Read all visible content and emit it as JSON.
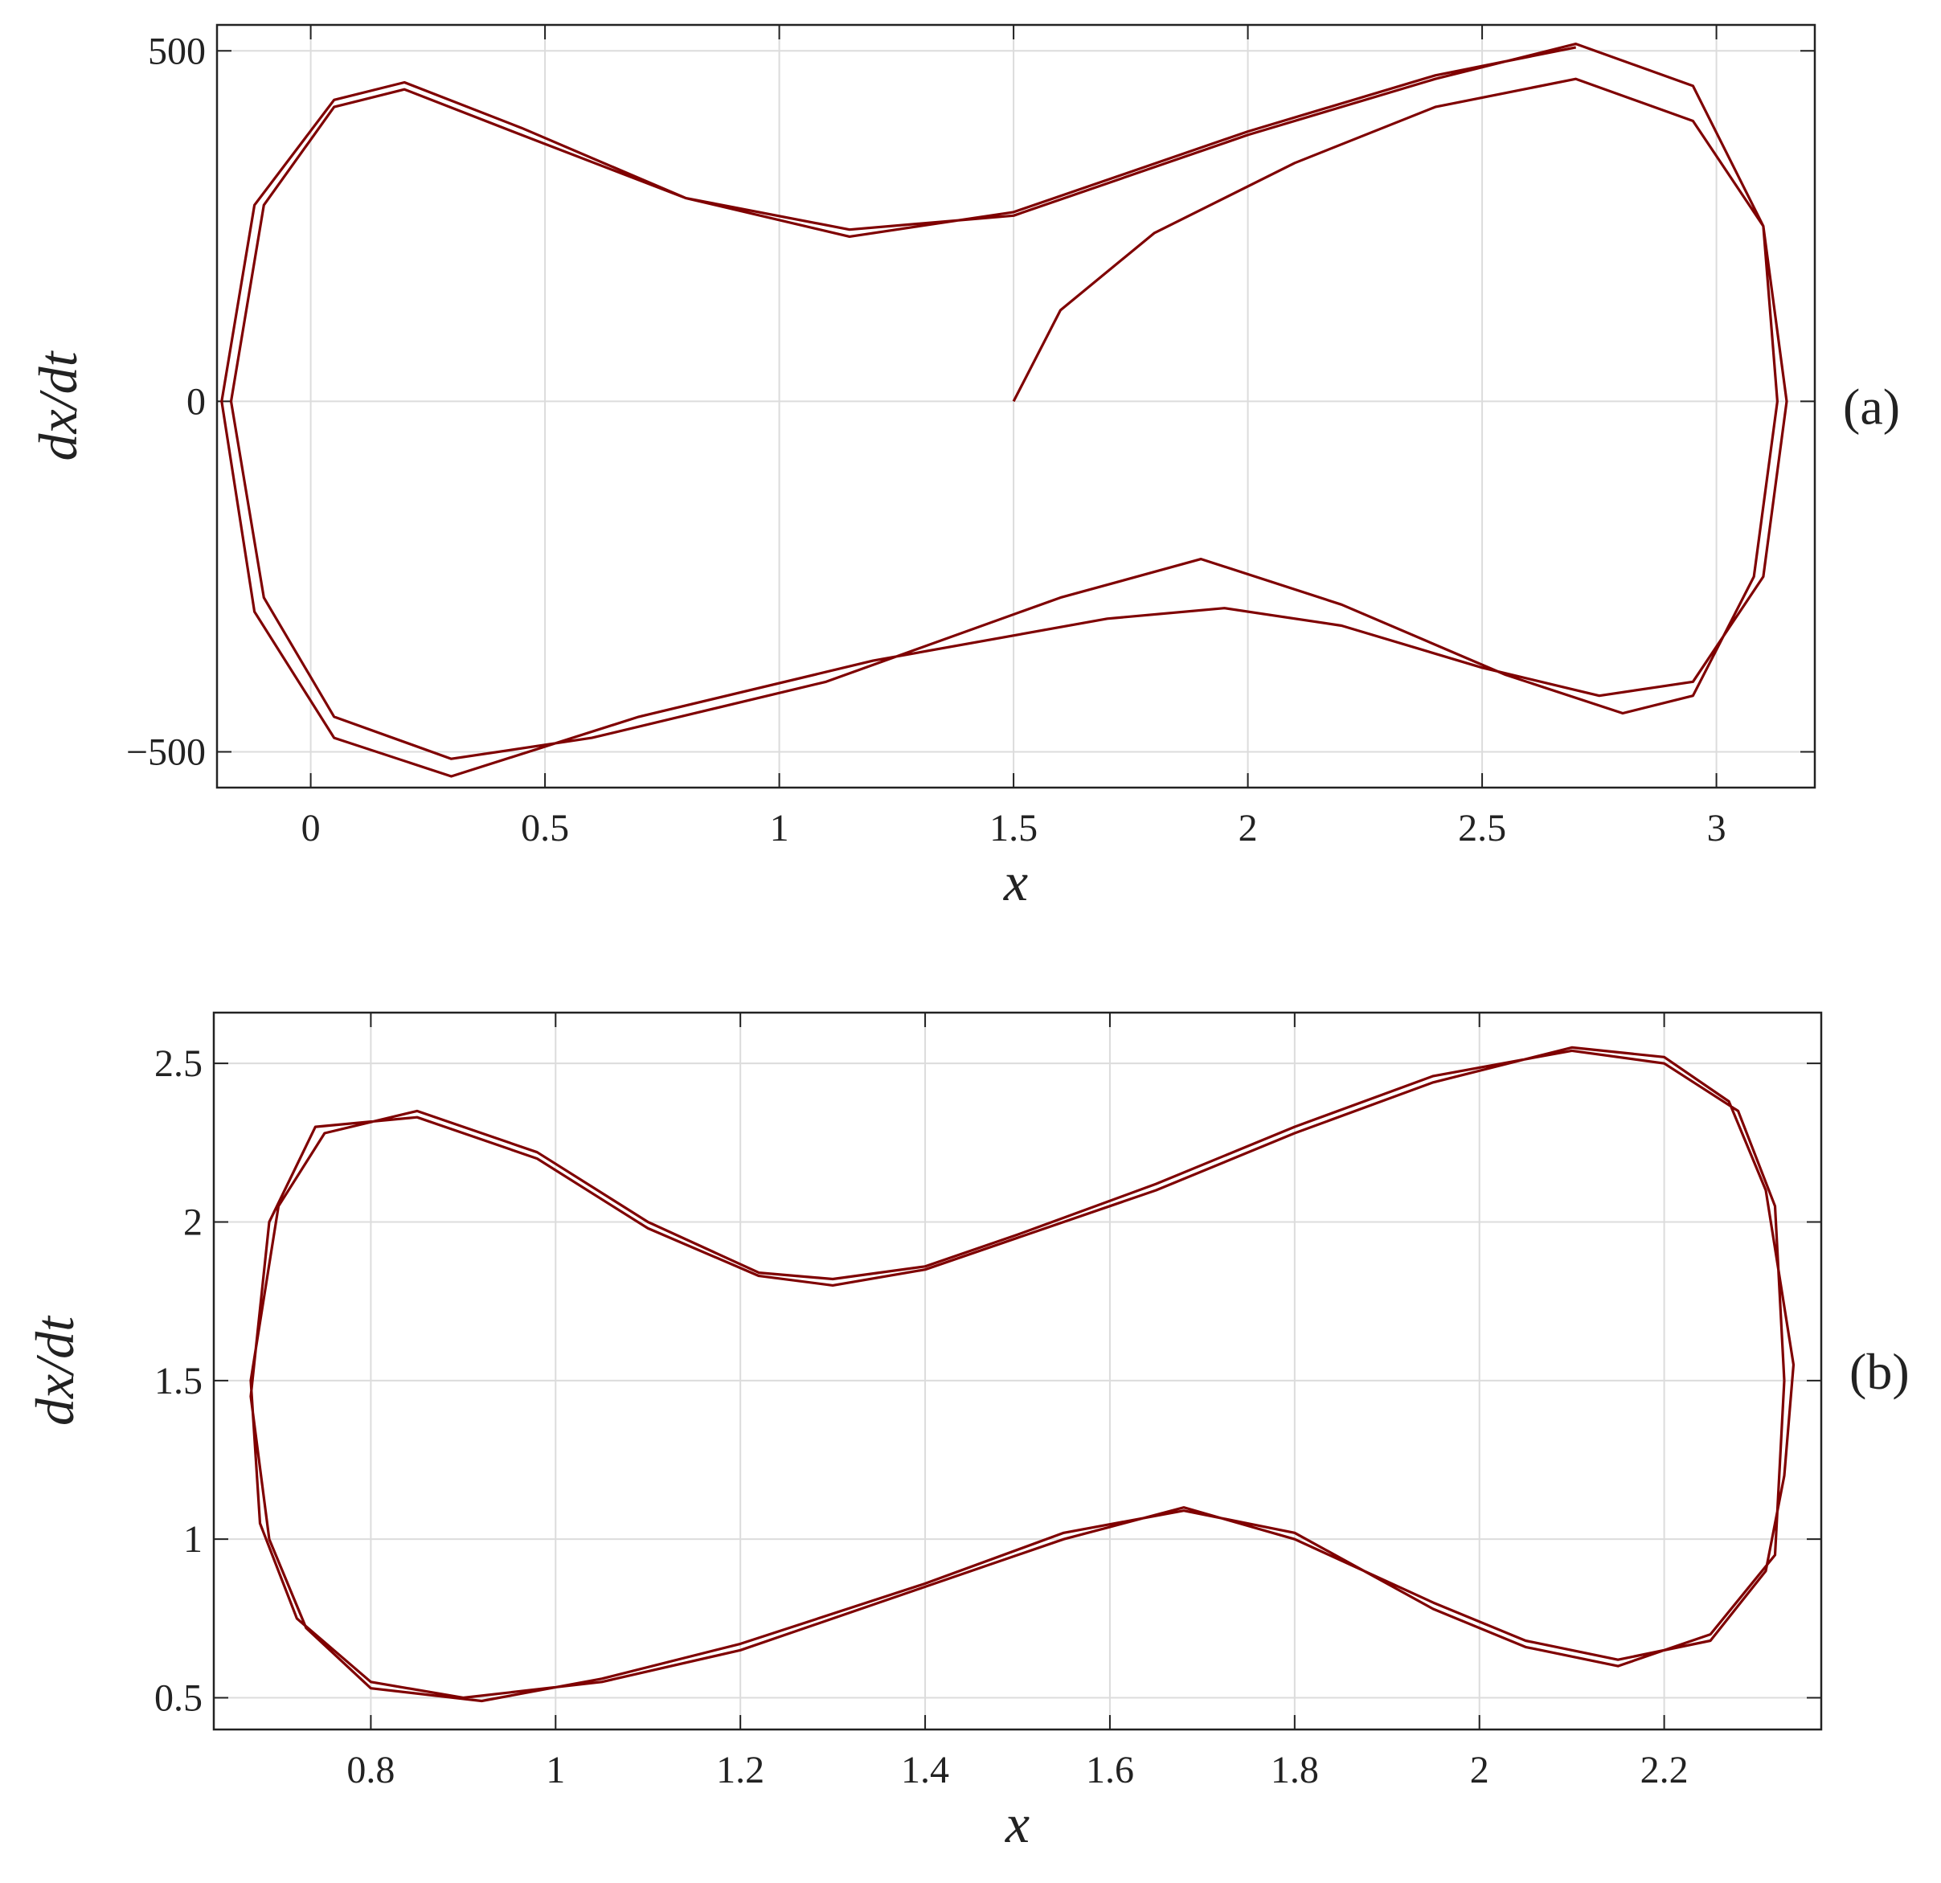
{
  "chart_data": [
    {
      "type": "line",
      "xlabel": "x",
      "ylabel": "dx/dt",
      "annotation": "(a)",
      "xlim": [
        -0.2,
        3.21
      ],
      "ylim": [
        -551,
        537
      ],
      "xticks": [
        0,
        0.5,
        1,
        1.5,
        2,
        2.5,
        3
      ],
      "yticks": [
        {
          "value": -500,
          "label": "−500"
        },
        0,
        500
      ],
      "grid": true,
      "series": [
        {
          "color": "#7f0000",
          "x": [
            1.5,
            1.6,
            1.8,
            2.1,
            2.4,
            2.7,
            2.95,
            3.1,
            3.15,
            3.1,
            2.95,
            2.75,
            2.5,
            2.2,
            1.95,
            1.7,
            1.2,
            0.7,
            0.3,
            0.05,
            -0.12,
            -0.19,
            -0.12,
            0.05,
            0.2,
            0.45,
            0.8,
            1.15,
            1.5,
            2.0,
            2.4,
            2.7,
            2.95,
            3.1,
            3.13,
            3.08,
            2.95,
            2.8,
            2.55,
            2.2,
            1.9,
            1.6,
            1.1,
            0.6,
            0.3,
            0.05,
            -0.1,
            -0.17,
            -0.1,
            0.05,
            0.2,
            0.45,
            0.8,
            1.15,
            1.5,
            2.0,
            2.4,
            2.7
          ],
          "values": [
            0,
            130,
            240,
            340,
            420,
            460,
            400,
            250,
            0,
            -250,
            -400,
            -420,
            -380,
            -320,
            -295,
            -310,
            -370,
            -450,
            -535,
            -480,
            -300,
            0,
            280,
            430,
            455,
            390,
            290,
            245,
            265,
            380,
            460,
            510,
            450,
            250,
            0,
            -250,
            -420,
            -445,
            -390,
            -290,
            -225,
            -280,
            -400,
            -480,
            -510,
            -450,
            -280,
            0,
            280,
            420,
            445,
            380,
            290,
            235,
            270,
            385,
            465,
            505
          ]
        }
      ]
    },
    {
      "type": "line",
      "xlabel": "x",
      "ylabel": "dx/dt",
      "annotation": "(b)",
      "xlim": [
        0.63,
        2.37
      ],
      "ylim": [
        0.4,
        2.66
      ],
      "xticks": [
        0.8,
        1,
        1.2,
        1.4,
        1.6,
        1.8,
        2,
        2.2
      ],
      "yticks": [
        0.5,
        1,
        1.5,
        2,
        2.5
      ],
      "grid": true,
      "series": [
        {
          "color": "#7f0000",
          "x": [
            2.33,
            2.32,
            2.28,
            2.2,
            2.1,
            1.95,
            1.8,
            1.65,
            1.5,
            1.4,
            1.3,
            1.22,
            1.1,
            0.98,
            0.85,
            0.75,
            0.7,
            0.67,
            0.68,
            0.72,
            0.8,
            0.9,
            1.05,
            1.2,
            1.4,
            1.55,
            1.68,
            1.8,
            1.95,
            2.05,
            2.15,
            2.25,
            2.31,
            2.33,
            2.34,
            2.31,
            2.27,
            2.2,
            2.1,
            1.95,
            1.8,
            1.65,
            1.5,
            1.4,
            1.3,
            1.22,
            1.1,
            0.98,
            0.85,
            0.74,
            0.69,
            0.67,
            0.69,
            0.73,
            0.8,
            0.92,
            1.05,
            1.2,
            1.4,
            1.55,
            1.68,
            1.8,
            1.95,
            2.05,
            2.15,
            2.25,
            2.32,
            2.33
          ],
          "values": [
            1.5,
            2.05,
            2.35,
            2.5,
            2.54,
            2.46,
            2.3,
            2.12,
            1.96,
            1.86,
            1.82,
            1.84,
            2.0,
            2.22,
            2.35,
            2.28,
            2.05,
            1.5,
            1.05,
            0.75,
            0.55,
            0.5,
            0.55,
            0.65,
            0.85,
            1.0,
            1.1,
            1.0,
            0.8,
            0.68,
            0.62,
            0.68,
            0.9,
            1.2,
            1.55,
            2.1,
            2.38,
            2.52,
            2.55,
            2.44,
            2.28,
            2.1,
            1.95,
            1.85,
            1.8,
            1.83,
            1.98,
            2.2,
            2.33,
            2.3,
            2.0,
            1.45,
            1.0,
            0.72,
            0.53,
            0.49,
            0.56,
            0.67,
            0.86,
            1.02,
            1.09,
            1.02,
            0.78,
            0.66,
            0.6,
            0.7,
            0.95,
            1.5
          ]
        }
      ]
    }
  ]
}
